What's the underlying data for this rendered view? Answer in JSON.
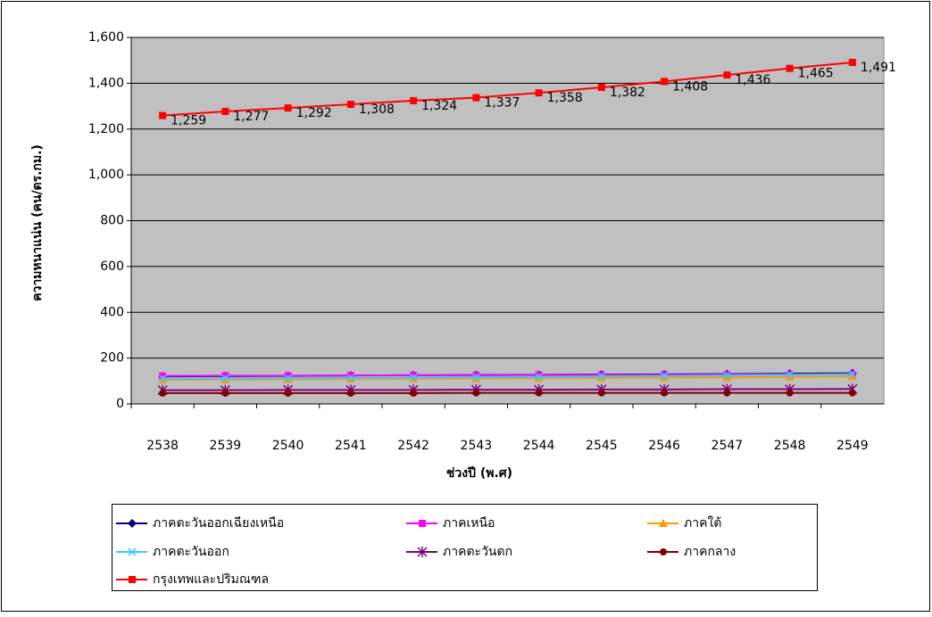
{
  "chart_data": {
    "type": "line",
    "title_y": "ความหนาแน่น (คน/ตร.กม.)",
    "title_x": "ช่วงปี (พ.ศ)",
    "categories": [
      "2538",
      "2539",
      "2540",
      "2541",
      "2542",
      "2543",
      "2544",
      "2545",
      "2546",
      "2547",
      "2548",
      "2549"
    ],
    "ylim": [
      0,
      1600
    ],
    "yticks": [
      0,
      200,
      400,
      600,
      800,
      {
        "value": 1000,
        "label": "1,000"
      },
      {
        "value": 1200,
        "label": "1,200"
      },
      {
        "value": 1400,
        "label": "1,400"
      },
      {
        "value": 1600,
        "label": "1,600"
      }
    ],
    "grid": true,
    "plot_background": "#c0c0c0",
    "legend": "bottom",
    "series": [
      {
        "name": "ภาคตะวันออกเฉียงเหนือ",
        "color": "#000080",
        "marker": "diamond",
        "values": [
          120,
          121,
          122,
          124,
          125,
          126,
          127,
          128,
          129,
          130,
          132,
          134
        ]
      },
      {
        "name": "ภาคเหนือ",
        "color": "#ff00ff",
        "marker": "square",
        "values": [
          122,
          123,
          123,
          124,
          125,
          125,
          126,
          126,
          127,
          128,
          129,
          130
        ]
      },
      {
        "name": "ภาคใต้",
        "color": "#ff9900",
        "marker": "triangle",
        "values": [
          105,
          106,
          107,
          108,
          110,
          111,
          112,
          113,
          115,
          116,
          118,
          120
        ]
      },
      {
        "name": "ภาคตะวันออก",
        "color": "#33ccff",
        "marker": "x",
        "values": [
          110,
          111,
          112,
          113,
          115,
          116,
          118,
          120,
          122,
          124,
          127,
          130
        ]
      },
      {
        "name": "ภาคตะวันตก",
        "color": "#800080",
        "marker": "asterisk",
        "values": [
          60,
          60,
          61,
          61,
          61,
          62,
          62,
          63,
          63,
          64,
          64,
          65
        ]
      },
      {
        "name": "ภาคกลาง",
        "color": "#800000",
        "marker": "circle",
        "values": [
          47,
          47,
          47,
          47,
          47,
          48,
          48,
          48,
          48,
          48,
          48,
          48
        ]
      },
      {
        "name": "กรุงเทพและปริมณฑล",
        "color": "#ff0000",
        "marker": "square",
        "values": [
          1259,
          1277,
          1292,
          1308,
          1324,
          1337,
          1358,
          1382,
          1408,
          1436,
          1465,
          1491
        ],
        "value_labels": [
          "1,259",
          "1,277",
          "1,292",
          "1,308",
          "1,324",
          "1,337",
          "1,358",
          "1,382",
          "1,408",
          "1,436",
          "1,465",
          "1,491"
        ]
      }
    ]
  }
}
